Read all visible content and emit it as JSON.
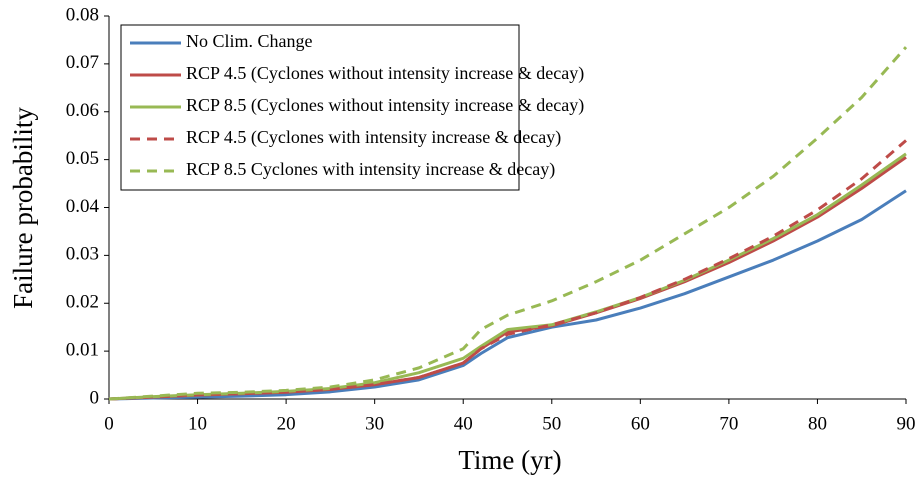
{
  "chart_data": {
    "type": "line",
    "x_label": "Time (yr)",
    "y_label": "Failure probability",
    "x": [
      0,
      5,
      10,
      15,
      20,
      25,
      30,
      35,
      40,
      42,
      45,
      50,
      55,
      60,
      65,
      70,
      75,
      80,
      85,
      90
    ],
    "xlim": [
      0,
      90
    ],
    "xticks": [
      0,
      10,
      20,
      30,
      40,
      50,
      60,
      70,
      80,
      90
    ],
    "ylim": [
      0,
      0.08
    ],
    "yticks": [
      0,
      0.01,
      0.02,
      0.03,
      0.04,
      0.05,
      0.06,
      0.07,
      0.08
    ],
    "grid": false,
    "legend": "upper left",
    "series": [
      {
        "name": "No Clim. Change",
        "color": "#4a7ebb",
        "dash": false,
        "values": [
          0,
          0.0002,
          0.0004,
          0.0006,
          0.0009,
          0.0015,
          0.0025,
          0.004,
          0.007,
          0.0095,
          0.0128,
          0.015,
          0.0165,
          0.019,
          0.022,
          0.0255,
          0.029,
          0.033,
          0.0375,
          0.0435
        ]
      },
      {
        "name": "RCP 4.5 (Cyclones without intensity increase & decay)",
        "color": "#be4b48",
        "dash": false,
        "values": [
          0,
          0.0004,
          0.0008,
          0.0011,
          0.0014,
          0.002,
          0.003,
          0.0045,
          0.0075,
          0.0105,
          0.014,
          0.0153,
          0.018,
          0.021,
          0.0245,
          0.0285,
          0.033,
          0.038,
          0.044,
          0.0505
        ]
      },
      {
        "name": "RCP 8.5 (Cyclones without intensity increase & decay)",
        "color": "#98b954",
        "dash": false,
        "values": [
          0,
          0.0005,
          0.0009,
          0.0012,
          0.0016,
          0.0022,
          0.0034,
          0.0055,
          0.0085,
          0.011,
          0.0145,
          0.0155,
          0.0182,
          0.0212,
          0.0248,
          0.029,
          0.0335,
          0.0385,
          0.0447,
          0.0512
        ]
      },
      {
        "name": "RCP 4.5 (Cyclones with intensity increase & decay)",
        "color": "#be4b48",
        "dash": true,
        "values": [
          0,
          0.0005,
          0.0009,
          0.0012,
          0.0015,
          0.002,
          0.003,
          0.0045,
          0.0075,
          0.0105,
          0.0135,
          0.0155,
          0.018,
          0.0212,
          0.025,
          0.0293,
          0.034,
          0.0395,
          0.046,
          0.054
        ]
      },
      {
        "name": "RCP 8.5 Cyclones with intensity increase & decay)",
        "color": "#98b954",
        "dash": true,
        "values": [
          0,
          0.0006,
          0.0012,
          0.0014,
          0.0018,
          0.0025,
          0.004,
          0.0065,
          0.0105,
          0.0145,
          0.0175,
          0.0205,
          0.0245,
          0.029,
          0.0345,
          0.04,
          0.0465,
          0.0545,
          0.063,
          0.0735
        ]
      }
    ]
  }
}
